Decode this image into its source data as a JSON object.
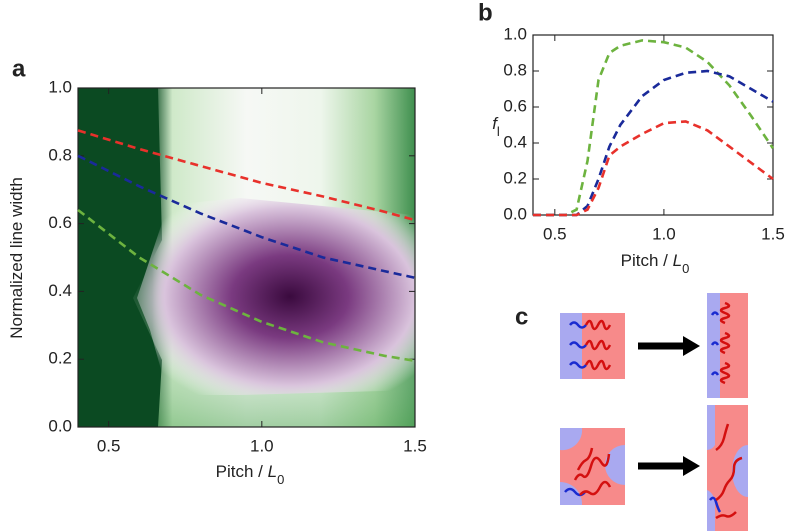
{
  "chart_data": [
    {
      "type": "line",
      "panel_label": "a",
      "x_label": [
        "Pitch / ",
        "L",
        "0"
      ],
      "y_label": [
        "Normalized line width"
      ],
      "x": [
        0.4,
        0.6,
        0.8,
        1.0,
        1.2,
        1.4,
        1.5
      ],
      "series": [
        {
          "color": "#e8312b",
          "values": [
            0.875,
            0.82,
            0.77,
            0.72,
            0.68,
            0.635,
            0.61
          ]
        },
        {
          "color": "#1a2a9a",
          "values": [
            0.8,
            0.71,
            0.63,
            0.56,
            0.5,
            0.46,
            0.44
          ]
        },
        {
          "color": "#6db33f",
          "values": [
            0.64,
            0.5,
            0.39,
            0.31,
            0.25,
            0.21,
            0.195
          ]
        }
      ],
      "xlim": [
        0.4,
        1.5
      ],
      "ylim": [
        0,
        1
      ],
      "xticks": [
        0.5,
        {
          "value": 1,
          "label": "1.0"
        },
        1.5
      ],
      "yticks": [
        {
          "value": 0,
          "label": "0.0"
        },
        0.2,
        0.4,
        0.6,
        0.8,
        {
          "value": 1,
          "label": "1.0"
        }
      ],
      "heatmap": true
    },
    {
      "type": "line",
      "panel_label": "b",
      "x_label": [
        "Pitch / ",
        "L",
        "0"
      ],
      "y_label": [
        "f",
        "l"
      ],
      "x": [
        0.4,
        0.55,
        0.6,
        0.65,
        0.7,
        0.75,
        0.8,
        0.9,
        1.0,
        1.1,
        1.2,
        1.3,
        1.4,
        1.5
      ],
      "series": [
        {
          "color": "#6db33f",
          "values": [
            0,
            0,
            0.03,
            0.3,
            0.75,
            0.9,
            0.94,
            0.97,
            0.96,
            0.93,
            0.85,
            0.72,
            0.55,
            0.37
          ]
        },
        {
          "color": "#1a2a9a",
          "values": [
            0,
            0,
            0,
            0.05,
            0.2,
            0.38,
            0.5,
            0.66,
            0.75,
            0.79,
            0.8,
            0.77,
            0.7,
            0.63
          ]
        },
        {
          "color": "#e8312b",
          "values": [
            0,
            0,
            0,
            0.03,
            0.15,
            0.33,
            0.38,
            0.45,
            0.51,
            0.52,
            0.47,
            0.38,
            0.29,
            0.2
          ]
        }
      ],
      "xlim": [
        0.4,
        1.5
      ],
      "ylim": [
        0,
        1
      ],
      "xticks": [
        0.5,
        {
          "value": 1,
          "label": "1.0"
        },
        1.5
      ],
      "yticks": [
        {
          "value": 0,
          "label": "0.0"
        },
        0.2,
        0.4,
        0.6,
        0.8,
        {
          "value": 1,
          "label": "1.0"
        }
      ],
      "heatmap": false
    }
  ],
  "diagram": {
    "panel_label": "c"
  }
}
